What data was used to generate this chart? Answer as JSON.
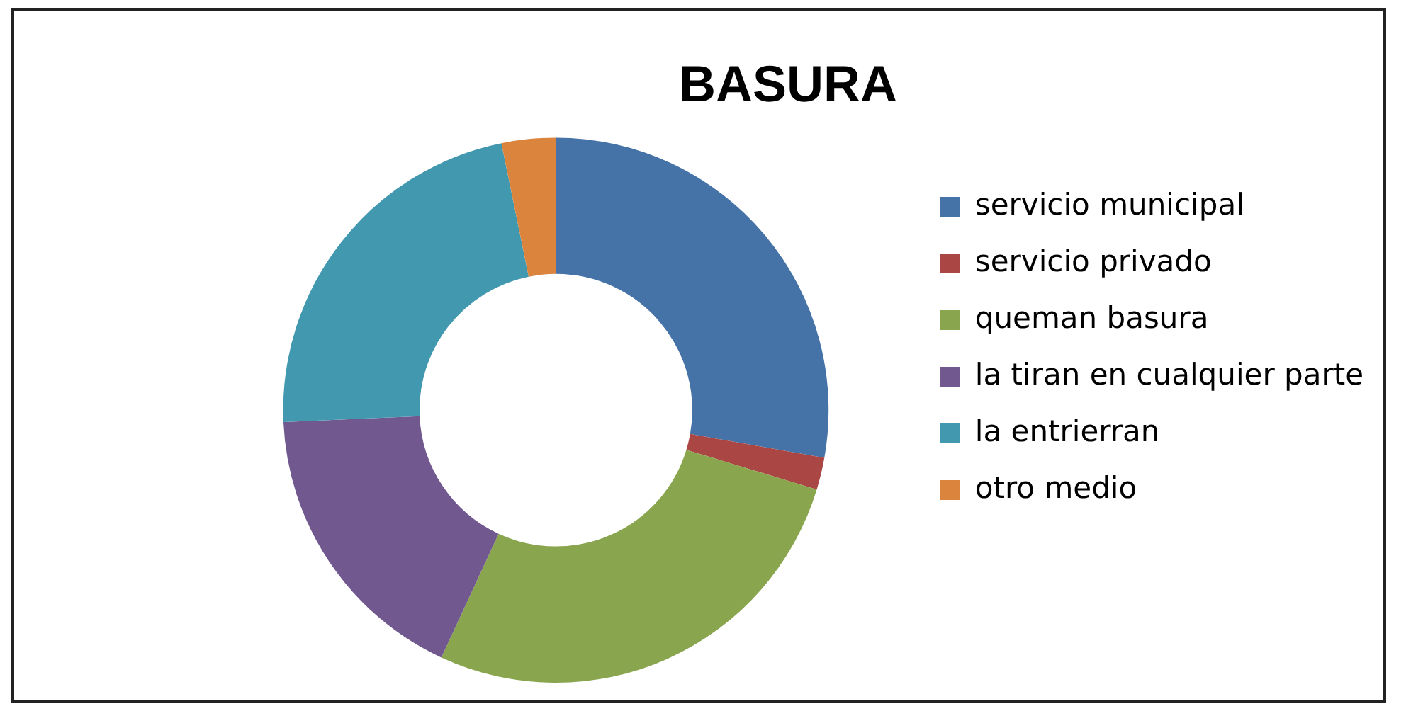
{
  "chart_data": {
    "type": "donut",
    "title": "BASURA",
    "categories": [
      "servicio municipal",
      "servicio privado",
      "queman basura",
      "la tiran en cualquier parte",
      "la entrierran",
      "otro medio"
    ],
    "values": [
      27.8,
      1.9,
      27.2,
      17.4,
      22.5,
      3.2
    ],
    "colors": [
      "#4572a7",
      "#aa4643",
      "#89a54e",
      "#71588f",
      "#4198af",
      "#db843d"
    ],
    "legend": "right"
  }
}
